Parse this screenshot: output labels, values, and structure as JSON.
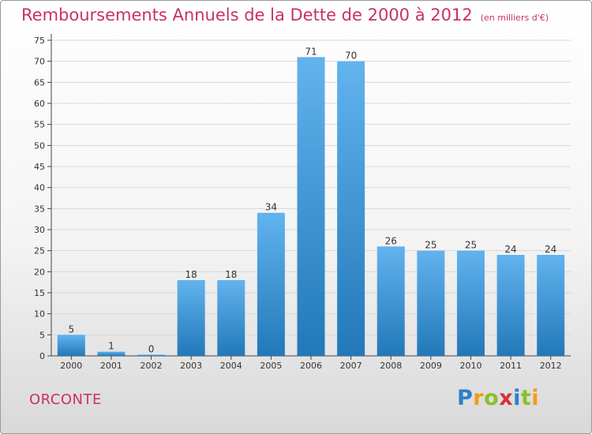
{
  "title": "Remboursements Annuels de la Dette de 2000 à 2012",
  "unit_note": "(en milliers d'€)",
  "commune": "ORCONTE",
  "brand": {
    "letters": [
      "P",
      "r",
      "o",
      "x",
      "i",
      "t",
      "i"
    ],
    "colors": [
      "#2e7fc8",
      "#f39c12",
      "#8bbf2a",
      "#d6303a",
      "#2e7fc8",
      "#8bbf2a",
      "#f39c12"
    ]
  },
  "colors": {
    "title": "#c8306a",
    "bar_light": "#62b3ee",
    "bar_dark": "#2278b8",
    "grid": "#d8d8d8"
  },
  "chart_data": {
    "type": "bar",
    "categories": [
      "2000",
      "2001",
      "2002",
      "2003",
      "2004",
      "2005",
      "2006",
      "2007",
      "2008",
      "2009",
      "2010",
      "2011",
      "2012"
    ],
    "values": [
      5,
      1,
      0,
      18,
      18,
      34,
      71,
      70,
      26,
      25,
      25,
      24,
      24
    ],
    "ylim": [
      0,
      75
    ],
    "yticks": [
      0,
      5,
      10,
      15,
      20,
      25,
      30,
      35,
      40,
      45,
      50,
      55,
      60,
      65,
      70,
      75
    ],
    "grid": true,
    "legend": "none"
  }
}
